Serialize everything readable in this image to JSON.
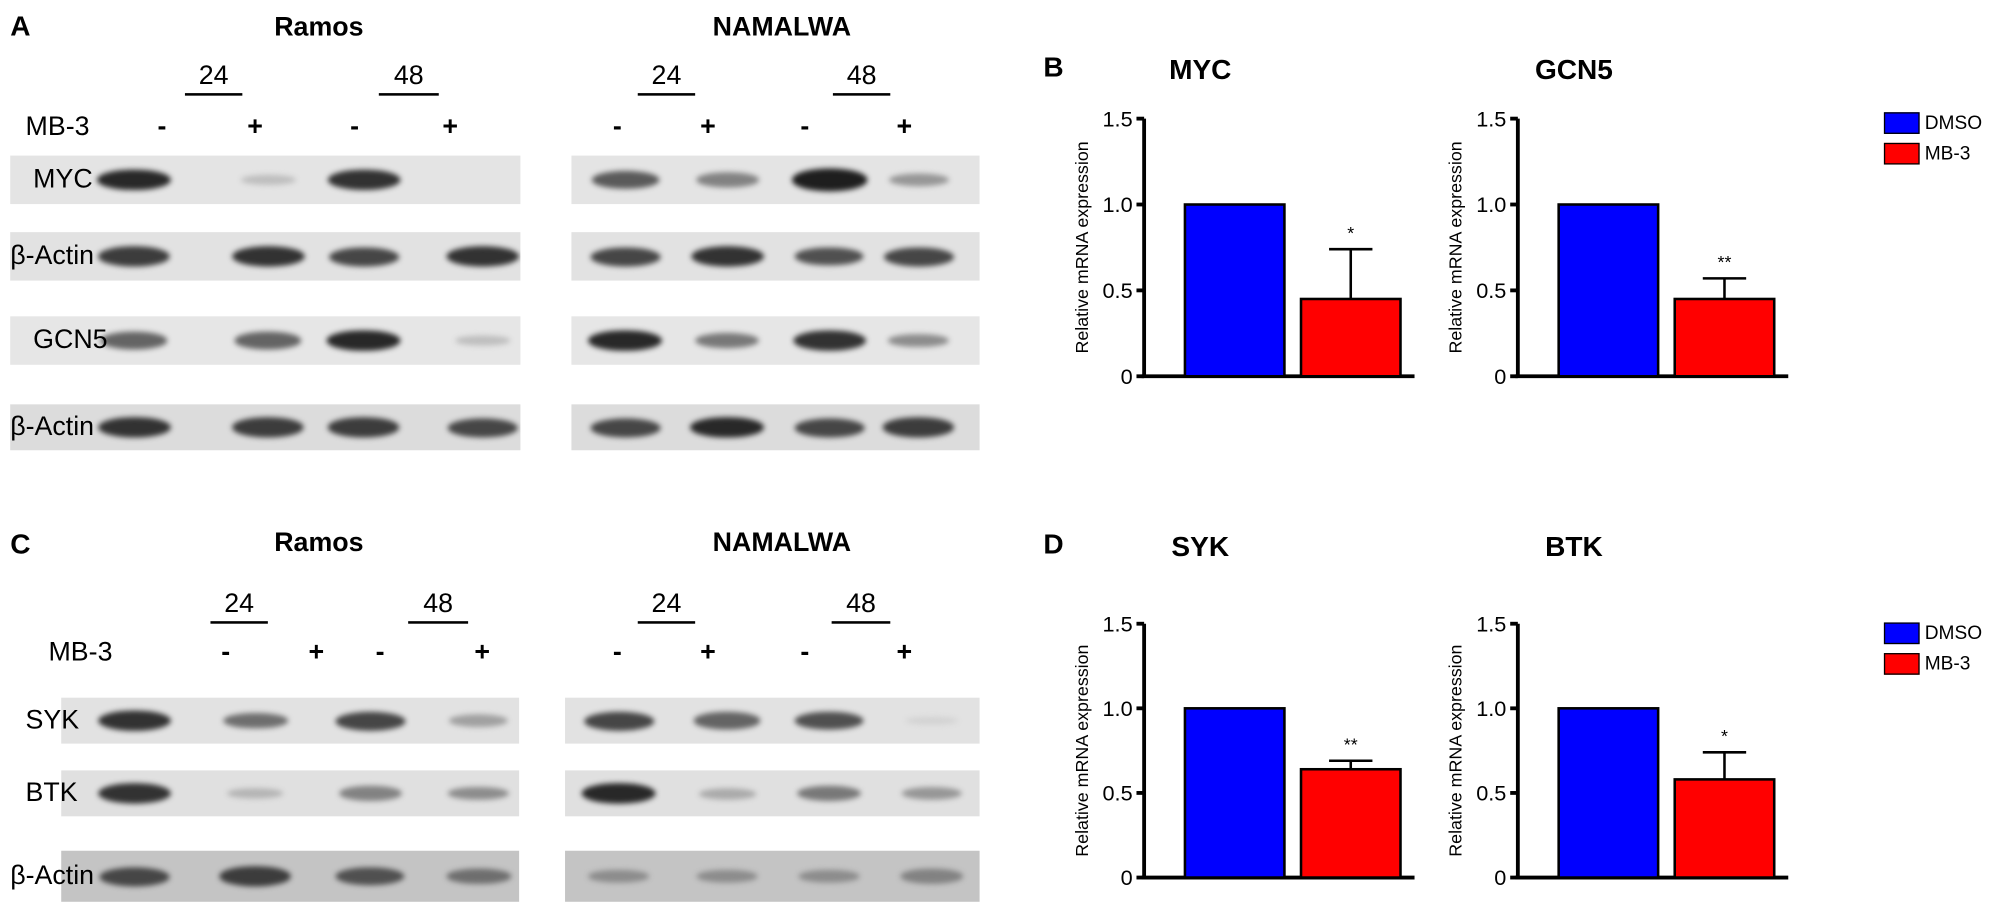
{
  "panels": {
    "A": "A",
    "B": "B",
    "C": "C",
    "D": "D"
  },
  "blots": {
    "A": {
      "cell_lines": [
        "Ramos",
        "NAMALWA"
      ],
      "timepoints": [
        "24",
        "48"
      ],
      "treatment_label": "MB-3",
      "signs": [
        "-",
        "+",
        "-",
        "+"
      ],
      "rows": [
        {
          "label": "MYC",
          "intensity": {
            "Ramos": [
              0.9,
              0.15,
              0.85,
              0
            ],
            "NAMALWA": [
              0.65,
              0.45,
              0.95,
              0.35
            ]
          }
        },
        {
          "label": "β-Actin",
          "intensity": {
            "Ramos": [
              0.8,
              0.85,
              0.75,
              0.85
            ],
            "NAMALWA": [
              0.75,
              0.85,
              0.7,
              0.75
            ]
          }
        },
        {
          "label": "GCN5",
          "intensity": {
            "Ramos": [
              0.6,
              0.6,
              0.9,
              0.15
            ],
            "NAMALWA": [
              0.9,
              0.5,
              0.85,
              0.4
            ]
          }
        },
        {
          "label": "β-Actin",
          "intensity": {
            "Ramos": [
              0.85,
              0.8,
              0.8,
              0.75
            ],
            "NAMALWA": [
              0.75,
              0.9,
              0.75,
              0.8
            ]
          }
        }
      ]
    },
    "C": {
      "cell_lines": [
        "Ramos",
        "NAMALWA"
      ],
      "timepoints": [
        "24",
        "48"
      ],
      "treatment_label": "MB-3",
      "signs": [
        "-",
        "+",
        "-",
        "+"
      ],
      "rows": [
        {
          "label": "SYK",
          "intensity": {
            "Ramos": [
              0.85,
              0.55,
              0.75,
              0.3
            ],
            "NAMALWA": [
              0.75,
              0.6,
              0.7,
              0.05
            ]
          }
        },
        {
          "label": "BTK",
          "intensity": {
            "Ramos": [
              0.85,
              0.2,
              0.45,
              0.4
            ],
            "NAMALWA": [
              0.9,
              0.25,
              0.5,
              0.35
            ]
          }
        },
        {
          "label": "β-Actin",
          "intensity": {
            "Ramos": [
              0.75,
              0.8,
              0.7,
              0.55
            ],
            "NAMALWA": [
              0.4,
              0.4,
              0.4,
              0.45
            ]
          }
        }
      ]
    }
  },
  "legend": [
    {
      "label": "DMSO",
      "color": "#0000ff"
    },
    {
      "label": "MB-3",
      "color": "#ff0000"
    }
  ],
  "chart_data": [
    {
      "type": "bar",
      "panel": "B",
      "title": "MYC",
      "ylabel": "Relative mRNA expression",
      "ylim": [
        0,
        1.5
      ],
      "yticks": [
        "0",
        "0.5",
        "1.0",
        "1.5"
      ],
      "categories": [
        "DMSO",
        "MB-3"
      ],
      "values": [
        1.0,
        0.45
      ],
      "error_upper": [
        null,
        0.74
      ],
      "significance": [
        "",
        "*"
      ],
      "colors": [
        "#0000ff",
        "#ff0000"
      ]
    },
    {
      "type": "bar",
      "panel": "B",
      "title": "GCN5",
      "ylabel": "Relative mRNA expression",
      "ylim": [
        0,
        1.5
      ],
      "yticks": [
        "0",
        "0.5",
        "1.0",
        "1.5"
      ],
      "categories": [
        "DMSO",
        "MB-3"
      ],
      "values": [
        1.0,
        0.45
      ],
      "error_upper": [
        null,
        0.57
      ],
      "significance": [
        "",
        "**"
      ],
      "colors": [
        "#0000ff",
        "#ff0000"
      ]
    },
    {
      "type": "bar",
      "panel": "D",
      "title": "SYK",
      "ylabel": "Relative mRNA expression",
      "ylim": [
        0,
        1.5
      ],
      "yticks": [
        "0",
        "0.5",
        "1.0",
        "1.5"
      ],
      "categories": [
        "DMSO",
        "MB-3"
      ],
      "values": [
        1.0,
        0.64
      ],
      "error_upper": [
        null,
        0.69
      ],
      "significance": [
        "",
        "**"
      ],
      "colors": [
        "#0000ff",
        "#ff0000"
      ]
    },
    {
      "type": "bar",
      "panel": "D",
      "title": "BTK",
      "ylabel": "Relative mRNA expression",
      "ylim": [
        0,
        1.5
      ],
      "yticks": [
        "0",
        "0.5",
        "1.0",
        "1.5"
      ],
      "categories": [
        "DMSO",
        "MB-3"
      ],
      "values": [
        1.0,
        0.58
      ],
      "error_upper": [
        null,
        0.74
      ],
      "significance": [
        "",
        "*"
      ],
      "colors": [
        "#0000ff",
        "#ff0000"
      ]
    }
  ]
}
